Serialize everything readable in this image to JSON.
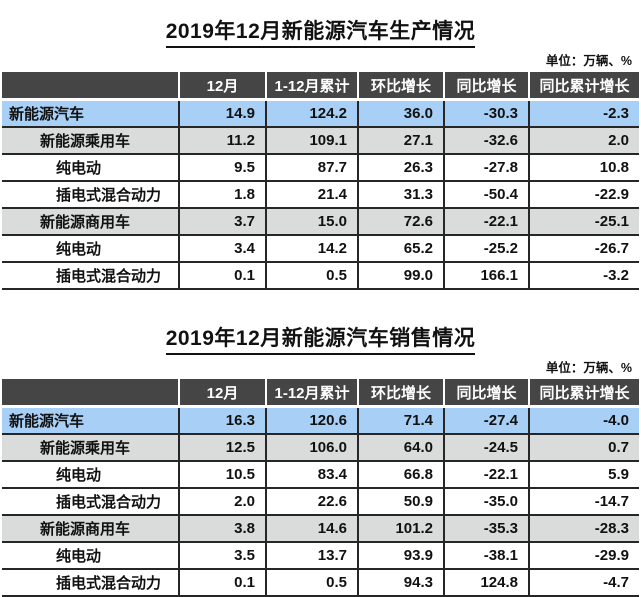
{
  "colors": {
    "header_bg": "#454545",
    "header_text": "#ffffff",
    "highlight_blue": "#a8cff5",
    "highlight_gray": "#dadcdb",
    "border": "#262626",
    "text": "#111111"
  },
  "chart_data": [
    {
      "type": "table",
      "title": "2019年12月新能源汽车生产情况",
      "unit": "单位：万辆、%",
      "columns": [
        "",
        "12月",
        "1-12月累计",
        "环比增长",
        "同比增长",
        "同比累计增长"
      ],
      "rows": [
        {
          "label": "新能源汽车",
          "values": [
            "14.9",
            "124.2",
            "36.0",
            "-30.3",
            "-2.3"
          ]
        },
        {
          "label": "新能源乘用车",
          "values": [
            "11.2",
            "109.1",
            "27.1",
            "-32.6",
            "2.0"
          ]
        },
        {
          "label": "纯电动",
          "values": [
            "9.5",
            "87.7",
            "26.3",
            "-27.8",
            "10.8"
          ]
        },
        {
          "label": "插电式混合动力",
          "values": [
            "1.8",
            "21.4",
            "31.3",
            "-50.4",
            "-22.9"
          ]
        },
        {
          "label": "新能源商用车",
          "values": [
            "3.7",
            "15.0",
            "72.6",
            "-22.1",
            "-25.1"
          ]
        },
        {
          "label": "纯电动",
          "values": [
            "3.4",
            "14.2",
            "65.2",
            "-25.2",
            "-26.7"
          ]
        },
        {
          "label": "插电式混合动力",
          "values": [
            "0.1",
            "0.5",
            "99.0",
            "166.1",
            "-3.2"
          ]
        }
      ]
    },
    {
      "type": "table",
      "title": "2019年12月新能源汽车销售情况",
      "unit": "单位：万辆、%",
      "columns": [
        "",
        "12月",
        "1-12月累计",
        "环比增长",
        "同比增长",
        "同比累计增长"
      ],
      "rows": [
        {
          "label": "新能源汽车",
          "values": [
            "16.3",
            "120.6",
            "71.4",
            "-27.4",
            "-4.0"
          ]
        },
        {
          "label": "新能源乘用车",
          "values": [
            "12.5",
            "106.0",
            "64.0",
            "-24.5",
            "0.7"
          ]
        },
        {
          "label": "纯电动",
          "values": [
            "10.5",
            "83.4",
            "66.8",
            "-22.1",
            "5.9"
          ]
        },
        {
          "label": "插电式混合动力",
          "values": [
            "2.0",
            "22.6",
            "50.9",
            "-35.0",
            "-14.7"
          ]
        },
        {
          "label": "新能源商用车",
          "values": [
            "3.8",
            "14.6",
            "101.2",
            "-35.3",
            "-28.3"
          ]
        },
        {
          "label": "纯电动",
          "values": [
            "3.5",
            "13.7",
            "93.9",
            "-38.1",
            "-29.9"
          ]
        },
        {
          "label": "插电式混合动力",
          "values": [
            "0.1",
            "0.5",
            "94.3",
            "124.8",
            "-4.7"
          ]
        }
      ]
    }
  ]
}
